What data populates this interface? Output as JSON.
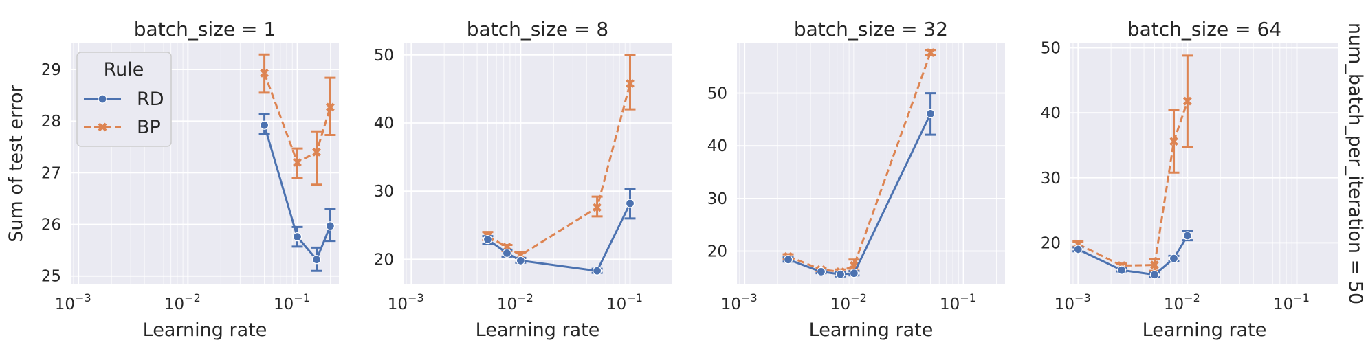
{
  "chart_data": {
    "type": "line",
    "row_label": "num_batch_per_iteration = 50",
    "ylabel": "Sum of test error",
    "xlabel": "Learning rate",
    "xscale": "log",
    "legend": {
      "title": "Rule",
      "placement": "upper-left of first panel",
      "entries": [
        {
          "name": "RD",
          "marker": "circle",
          "line": "solid",
          "color": "#4c72b0"
        },
        {
          "name": "BP",
          "marker": "x",
          "line": "dashed",
          "color": "#dd8452"
        }
      ]
    },
    "panels": [
      {
        "title": "batch_size = 1",
        "xlim": [
          0.00085,
          0.24
        ],
        "ylim": [
          24.85,
          29.52
        ],
        "yticks": [
          25,
          26,
          27,
          28,
          29
        ],
        "xticks": [
          0.001,
          0.01,
          0.1
        ],
        "xtick_labels": [
          "10",
          "10",
          "10"
        ],
        "xtick_exponents": [
          "−3",
          "−2",
          "−1"
        ],
        "series": [
          {
            "name": "RD",
            "x": [
              0.05,
              0.1,
              0.15,
              0.2
            ],
            "y": [
              27.92,
              25.76,
              25.32,
              25.97
            ],
            "err_low": [
              27.75,
              25.57,
              25.1,
              25.68
            ],
            "err_high": [
              28.14,
              25.95,
              25.55,
              26.3
            ]
          },
          {
            "name": "BP",
            "x": [
              0.05,
              0.1,
              0.15,
              0.2
            ],
            "y": [
              28.93,
              27.2,
              27.4,
              28.27
            ],
            "err_low": [
              28.55,
              26.9,
              26.77,
              27.73
            ],
            "err_high": [
              29.29,
              27.47,
              27.8,
              28.84
            ]
          }
        ]
      },
      {
        "title": "batch_size = 8",
        "xlim": [
          0.00085,
          0.24
        ],
        "ylim": [
          16.4,
          51.8
        ],
        "yticks": [
          20,
          30,
          40,
          50
        ],
        "xticks": [
          0.001,
          0.01,
          0.1
        ],
        "xtick_labels": [
          "10",
          "10",
          "10"
        ],
        "xtick_exponents": [
          "−3",
          "−2",
          "−1"
        ],
        "series": [
          {
            "name": "RD",
            "x": [
              0.005,
              0.0075,
              0.01,
              0.05,
              0.1
            ],
            "y": [
              22.9,
              20.9,
              19.8,
              18.3,
              28.2
            ],
            "err_low": [
              22.3,
              20.4,
              19.5,
              18.0,
              26.0
            ],
            "err_high": [
              23.4,
              21.4,
              20.2,
              18.6,
              30.3
            ]
          },
          {
            "name": "BP",
            "x": [
              0.005,
              0.0075,
              0.01,
              0.05,
              0.1
            ],
            "y": [
              23.4,
              21.8,
              20.6,
              27.6,
              45.8
            ],
            "err_low": [
              22.8,
              21.2,
              20.2,
              26.3,
              42.0
            ],
            "err_high": [
              24.0,
              22.1,
              21.0,
              29.2,
              50.0
            ]
          }
        ]
      },
      {
        "title": "batch_size = 32",
        "xlim": [
          0.00085,
          0.24
        ],
        "ylim": [
          13.8,
          59.6
        ],
        "yticks": [
          20,
          30,
          40,
          50
        ],
        "xticks": [
          0.001,
          0.01,
          0.1
        ],
        "xtick_labels": [
          "10",
          "10",
          "10"
        ],
        "xtick_exponents": [
          "−3",
          "−2",
          "−1"
        ],
        "series": [
          {
            "name": "RD",
            "x": [
              0.0025,
              0.005,
              0.0075,
              0.01,
              0.05
            ],
            "y": [
              18.4,
              16.1,
              15.6,
              15.8,
              46.1
            ],
            "err_low": [
              18.0,
              15.8,
              15.2,
              15.4,
              42.1
            ],
            "err_high": [
              18.8,
              16.4,
              16.0,
              16.2,
              50.0
            ]
          },
          {
            "name": "BP",
            "x": [
              0.0025,
              0.005,
              0.0075,
              0.01,
              0.05
            ],
            "y": [
              19.0,
              16.5,
              16.1,
              17.3,
              57.7
            ],
            "err_low": [
              18.5,
              16.2,
              15.7,
              16.3,
              57.2
            ],
            "err_high": [
              19.4,
              16.8,
              16.5,
              18.4,
              58.2
            ]
          }
        ]
      },
      {
        "title": "batch_size = 64",
        "xlim": [
          0.00085,
          0.24
        ],
        "ylim": [
          13.7,
          50.8
        ],
        "yticks": [
          20,
          30,
          40,
          50
        ],
        "xticks": [
          0.001,
          0.01,
          0.1
        ],
        "xtick_labels": [
          "10",
          "10",
          "10"
        ],
        "xtick_exponents": [
          "−3",
          "−2",
          "−1"
        ],
        "series": [
          {
            "name": "RD",
            "x": [
              0.001,
              0.0025,
              0.005,
              0.0075,
              0.01
            ],
            "y": [
              19.0,
              15.8,
              15.1,
              17.6,
              21.1
            ],
            "err_low": [
              18.7,
              15.6,
              14.8,
              17.2,
              20.4
            ],
            "err_high": [
              19.3,
              16.1,
              15.4,
              18.0,
              21.8
            ]
          },
          {
            "name": "BP",
            "x": [
              0.001,
              0.0025,
              0.005,
              0.0075,
              0.01
            ],
            "y": [
              19.8,
              16.5,
              16.6,
              35.6,
              41.8
            ],
            "err_low": [
              19.4,
              16.2,
              15.7,
              30.8,
              34.7
            ],
            "err_high": [
              20.2,
              16.8,
              17.5,
              40.5,
              48.8
            ]
          }
        ]
      }
    ]
  }
}
